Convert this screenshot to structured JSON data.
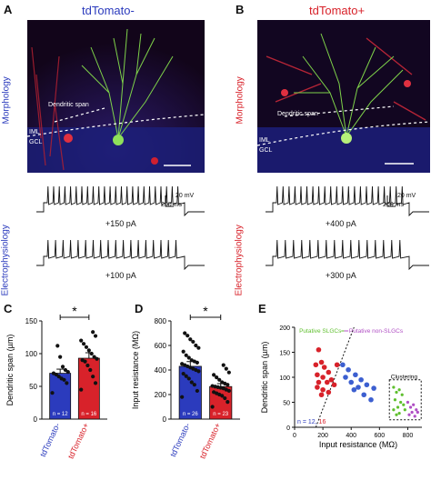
{
  "panels": {
    "A": {
      "letter": "A",
      "title": "tdTomato-"
    },
    "B": {
      "letter": "B",
      "title": "tdTomato+"
    },
    "C": {
      "letter": "C"
    },
    "D": {
      "letter": "D"
    },
    "E": {
      "letter": "E"
    }
  },
  "row_labels": {
    "morphology": "Morphology",
    "electrophysiology": "Electrophysiology"
  },
  "micro_labels": {
    "dendritic_span": "Dendritic span",
    "iml": "IML",
    "gcl": "GCL"
  },
  "traces": {
    "A_top": "+150 pA",
    "A_bottom": "+100 pA",
    "B_top": "+400 pA",
    "B_bottom": "+300 pA",
    "scale_mv": "20 mV",
    "scale_ms": "200 ms"
  },
  "colors": {
    "blue": "#2b3bbd",
    "red": "#d8222a",
    "green": "#5fbf2e",
    "purple": "#b04fc4",
    "cyan": "#3c5fd0"
  },
  "chart_data": [
    {
      "type": "bar",
      "panel": "C",
      "ylabel": "Dendritic span (µm)",
      "categories": [
        "tdTomato-",
        "tdTomato+"
      ],
      "values": [
        70,
        93
      ],
      "ylim": [
        0,
        150
      ],
      "yticks": [
        "0",
        "50",
        "100",
        "150"
      ],
      "significance": "*",
      "n_labels": [
        "n = 12",
        "n = 16"
      ],
      "points": [
        [
          40,
          55,
          60,
          62,
          65,
          68,
          70,
          72,
          75,
          80,
          95,
          112
        ],
        [
          45,
          55,
          65,
          75,
          82,
          88,
          90,
          92,
          95,
          100,
          105,
          110,
          115,
          120,
          127,
          133
        ]
      ]
    },
    {
      "type": "bar",
      "panel": "D",
      "ylabel": "Input resistance (MΩ)",
      "categories": [
        "tdTomato-",
        "tdTomato+"
      ],
      "values": [
        430,
        265
      ],
      "ylim": [
        0,
        800
      ],
      "yticks": [
        "0",
        "200",
        "400",
        "600",
        "800"
      ],
      "significance": "*",
      "n_labels": [
        "n = 26",
        "n = 23"
      ],
      "points": [
        [
          180,
          230,
          280,
          300,
          330,
          350,
          370,
          390,
          400,
          410,
          420,
          430,
          440,
          450,
          460,
          470,
          480,
          500,
          520,
          550,
          580,
          600,
          630,
          650,
          680,
          700
        ],
        [
          100,
          140,
          170,
          190,
          200,
          210,
          220,
          230,
          240,
          250,
          255,
          260,
          265,
          270,
          280,
          290,
          300,
          320,
          340,
          360,
          380,
          410,
          440
        ]
      ]
    },
    {
      "type": "scatter",
      "panel": "E",
      "xlabel": "Input resistance (MΩ)",
      "ylabel": "Dendritic span (µm)",
      "xlim": [
        0,
        900
      ],
      "ylim": [
        0,
        200
      ],
      "xticks": [
        "0",
        "200",
        "400",
        "600",
        "800"
      ],
      "yticks": [
        "0",
        "50",
        "100",
        "150",
        "200"
      ],
      "annotations": {
        "left": "Putative SLGCs",
        "right": "Putative non-SLGCs",
        "box": "Clustering",
        "n_prefix": "n = 12, ",
        "n_second": "16"
      },
      "series": [
        {
          "name": "tdTomato+",
          "points": [
            [
              170,
              155
            ],
            [
              190,
              130
            ],
            [
              150,
              125
            ],
            [
              210,
              120
            ],
            [
              240,
              110
            ],
            [
              160,
              105
            ],
            [
              200,
              100
            ],
            [
              260,
              95
            ],
            [
              170,
              90
            ],
            [
              230,
              90
            ],
            [
              280,
              85
            ],
            [
              160,
              80
            ],
            [
              200,
              75
            ],
            [
              240,
              70
            ],
            [
              190,
              65
            ],
            [
              300,
              125
            ]
          ]
        },
        {
          "name": "tdTomato-",
          "points": [
            [
              340,
              125
            ],
            [
              380,
              115
            ],
            [
              430,
              105
            ],
            [
              360,
              100
            ],
            [
              470,
              95
            ],
            [
              400,
              90
            ],
            [
              510,
              85
            ],
            [
              450,
              80
            ],
            [
              560,
              78
            ],
            [
              420,
              75
            ],
            [
              490,
              65
            ],
            [
              540,
              55
            ]
          ]
        }
      ],
      "cluster_green": [
        [
          700,
          80
        ],
        [
          720,
          70
        ],
        [
          740,
          75
        ],
        [
          760,
          65
        ],
        [
          710,
          55
        ],
        [
          750,
          50
        ],
        [
          730,
          40
        ],
        [
          770,
          45
        ],
        [
          780,
          35
        ],
        [
          700,
          35
        ],
        [
          740,
          28
        ],
        [
          720,
          25
        ]
      ],
      "cluster_purple": [
        [
          800,
          50
        ],
        [
          820,
          40
        ],
        [
          840,
          45
        ],
        [
          860,
          35
        ],
        [
          810,
          25
        ],
        [
          850,
          22
        ],
        [
          870,
          30
        ],
        [
          830,
          30
        ]
      ]
    }
  ]
}
